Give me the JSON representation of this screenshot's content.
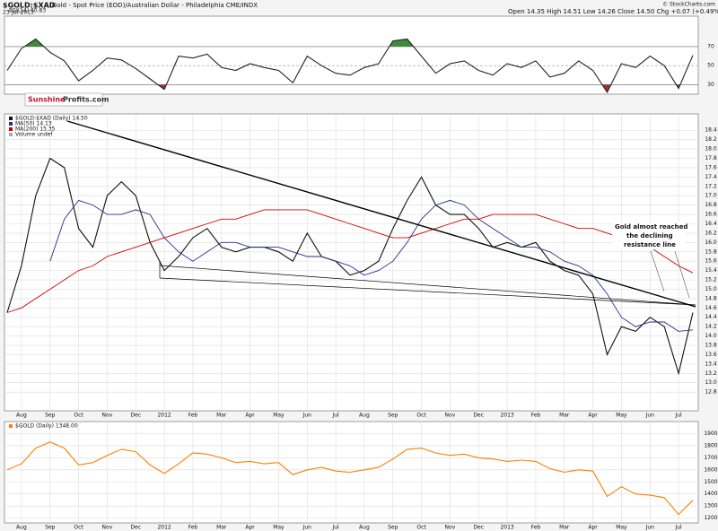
{
  "chart_data": [
    {
      "type": "line",
      "title": "$GOLD:$XAD",
      "subtitle": "Gold - Spot Price (EOD)/Australian Dollar - Philadelphia  CME/INDX",
      "date": "23-Jul-2013",
      "quote": "Open 14.35  High 14.51  Low 14.26  Close 14.50  Chg +0.07 (+0.49%)",
      "credit": "© StockCharts.com",
      "logo": [
        "Sunshine",
        "Profits.com"
      ],
      "ylim": [
        20,
        102
      ],
      "yticks": [
        30,
        50,
        70
      ],
      "overbought": 70,
      "oversold": 30,
      "series": [
        {
          "name": "RSI(14) 60.83",
          "color": "#222222",
          "values": [
            45,
            68,
            78,
            64,
            55,
            34,
            45,
            58,
            56,
            47,
            36,
            25,
            60,
            58,
            62,
            48,
            45,
            52,
            48,
            45,
            32,
            60,
            50,
            42,
            40,
            48,
            52,
            76,
            78,
            60,
            42,
            52,
            55,
            45,
            40,
            52,
            48,
            55,
            38,
            42,
            55,
            45,
            22,
            52,
            48,
            60,
            50,
            26,
            60.83
          ]
        }
      ]
    },
    {
      "type": "line",
      "categories": [
        null,
        "Aug",
        null,
        "Sep",
        null,
        "Oct",
        null,
        "Nov",
        null,
        "Dec",
        null,
        "2012",
        null,
        "Feb",
        null,
        "Mar",
        null,
        "Apr",
        null,
        "May",
        null,
        "Jun",
        null,
        "Jul",
        null,
        "Aug",
        null,
        "Sep",
        null,
        "Oct",
        null,
        "Nov",
        null,
        "Dec",
        null,
        "2013",
        null,
        "Feb",
        null,
        "Mar",
        null,
        "Apr",
        null,
        "May",
        null,
        "Jun",
        null,
        "Jul",
        null
      ],
      "ylim": [
        12.4,
        18.75
      ],
      "yticks": [
        {
          "value": 12.8,
          "label": "12.8"
        },
        {
          "value": 13,
          "label": "13.0"
        },
        {
          "value": 13.2,
          "label": "13.2"
        },
        {
          "value": 13.4,
          "label": "13.4"
        },
        {
          "value": 13.6,
          "label": "13.6"
        },
        {
          "value": 13.8,
          "label": "13.8"
        },
        {
          "value": 14,
          "label": "14.0"
        },
        {
          "value": 14.2,
          "label": "14.2"
        },
        {
          "value": 14.4,
          "label": "14.4"
        },
        {
          "value": 14.6,
          "label": "14.6"
        },
        {
          "value": 14.8,
          "label": "14.8"
        },
        {
          "value": 15,
          "label": "15.0"
        },
        {
          "value": 15.2,
          "label": "15.2"
        },
        {
          "value": 15.4,
          "label": "15.4"
        },
        {
          "value": 15.6,
          "label": "15.6"
        },
        {
          "value": 15.8,
          "label": "15.8"
        },
        {
          "value": 16,
          "label": "16.0"
        },
        {
          "value": 16.2,
          "label": "16.2"
        },
        {
          "value": 16.4,
          "label": "16.4"
        },
        {
          "value": 16.6,
          "label": "16.6"
        },
        {
          "value": 16.8,
          "label": "16.8"
        },
        {
          "value": 17,
          "label": "17.0"
        },
        {
          "value": 17.2,
          "label": "17.2"
        },
        {
          "value": 17.4,
          "label": "17.4"
        },
        {
          "value": 17.6,
          "label": "17.6"
        },
        {
          "value": 17.8,
          "label": "17.8"
        },
        {
          "value": 18,
          "label": "18.0"
        },
        {
          "value": 18.2,
          "label": "18.2"
        },
        {
          "value": 18.4,
          "label": "18.4"
        }
      ],
      "grid": true,
      "annotation": [
        "Gold almost reached",
        "the declining",
        "resistance line"
      ],
      "legend_extra": "Volume undef",
      "series": [
        {
          "name": "$GOLD:$XAD (Daily) 14.50",
          "color": "#111111",
          "values": [
            14.5,
            15.5,
            17,
            17.8,
            17.6,
            16.3,
            15.9,
            17,
            17.3,
            17,
            16,
            15.4,
            15.7,
            16.1,
            16.3,
            15.9,
            15.8,
            15.9,
            15.9,
            15.8,
            15.6,
            16.2,
            15.7,
            15.6,
            15.3,
            15.4,
            15.6,
            16.3,
            16.9,
            17.4,
            16.8,
            16.6,
            16.6,
            16.3,
            15.9,
            16,
            15.9,
            16,
            15.6,
            15.4,
            15.3,
            14.9,
            13.6,
            14.2,
            14.1,
            14.4,
            14.2,
            13.2,
            14.5
          ]
        },
        {
          "name": "MA(50) 14.13",
          "color": "#2b2b8f",
          "values": [
            null,
            null,
            null,
            15.6,
            16.5,
            16.9,
            16.8,
            16.6,
            16.6,
            16.7,
            16.6,
            16.1,
            15.8,
            15.6,
            15.8,
            16,
            16,
            15.9,
            15.9,
            15.9,
            15.8,
            15.7,
            15.7,
            15.6,
            15.5,
            15.3,
            15.4,
            15.6,
            16,
            16.5,
            16.8,
            16.9,
            16.8,
            16.5,
            16.3,
            16.1,
            15.9,
            15.9,
            15.8,
            15.6,
            15.5,
            15.3,
            14.9,
            14.4,
            14.2,
            14.3,
            14.3,
            14.1,
            14.13
          ]
        },
        {
          "name": "MA(200) 15.35",
          "color": "#d40000",
          "values": [
            14.5,
            14.6,
            14.8,
            15,
            15.2,
            15.4,
            15.5,
            15.7,
            15.8,
            15.9,
            16,
            16.1,
            16.2,
            16.3,
            16.4,
            16.5,
            16.5,
            16.6,
            16.7,
            16.7,
            16.7,
            16.7,
            16.6,
            16.5,
            16.4,
            16.3,
            16.2,
            16.1,
            16.1,
            16.2,
            16.3,
            16.4,
            16.5,
            16.5,
            16.6,
            16.6,
            16.6,
            16.6,
            16.5,
            16.4,
            16.3,
            16.3,
            16.2,
            16.1,
            16,
            15.9,
            15.7,
            15.5,
            15.35
          ]
        }
      ]
    },
    {
      "type": "line",
      "categories": [
        null,
        "Aug",
        null,
        "Sep",
        null,
        "Oct",
        null,
        "Nov",
        null,
        "Dec",
        null,
        "2012",
        null,
        "Feb",
        null,
        "Mar",
        null,
        "Apr",
        null,
        "May",
        null,
        "Jun",
        null,
        "Jul",
        null,
        "Aug",
        null,
        "Sep",
        null,
        "Oct",
        null,
        "Nov",
        null,
        "Dec",
        null,
        "2013",
        null,
        "Feb",
        null,
        "Mar",
        null,
        "Apr",
        null,
        "May",
        null,
        "Jun",
        null,
        "Jul",
        null
      ],
      "ylim": [
        1160,
        2000
      ],
      "yticks": [
        1200,
        1300,
        1400,
        1500,
        1600,
        1700,
        1800,
        1900
      ],
      "grid": true,
      "series": [
        {
          "name": "$GOLD (Daily) 1348.00",
          "color": "#ff7f00",
          "values": [
            1600,
            1650,
            1780,
            1830,
            1780,
            1640,
            1660,
            1720,
            1770,
            1750,
            1640,
            1570,
            1650,
            1740,
            1730,
            1700,
            1660,
            1670,
            1650,
            1660,
            1560,
            1600,
            1620,
            1590,
            1580,
            1600,
            1620,
            1690,
            1770,
            1780,
            1740,
            1720,
            1730,
            1700,
            1690,
            1670,
            1680,
            1670,
            1610,
            1580,
            1600,
            1590,
            1380,
            1460,
            1400,
            1390,
            1370,
            1230,
            1348
          ]
        }
      ]
    }
  ]
}
